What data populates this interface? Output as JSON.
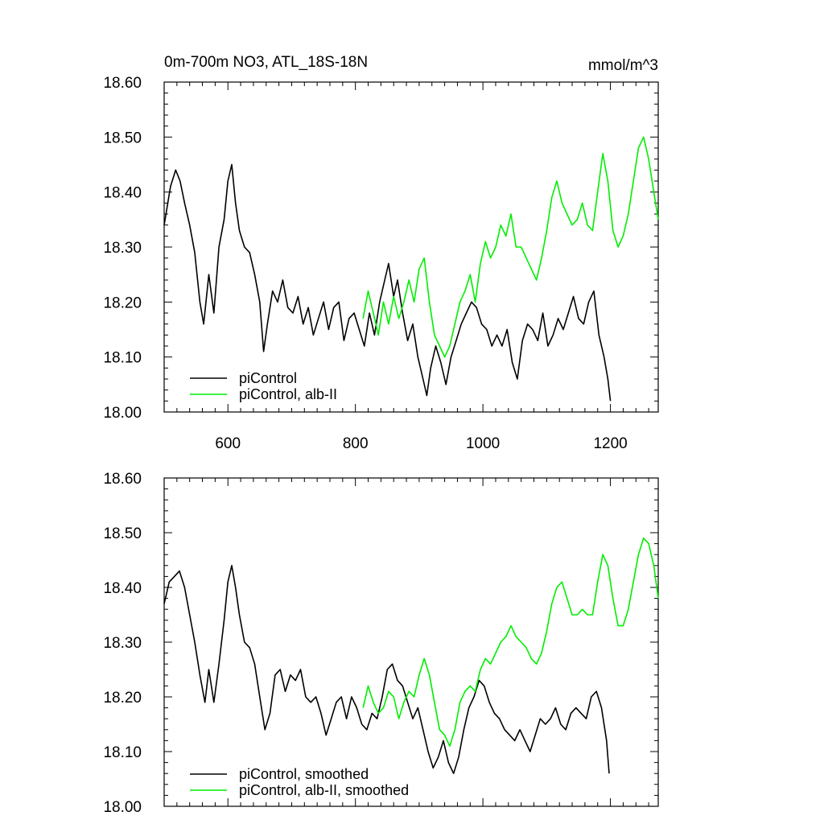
{
  "figure": {
    "title_left": "0m-700m NO3, ATL_18S-18N",
    "title_right": "mmol/m^3"
  },
  "chart_data": [
    {
      "type": "line",
      "panel": "top",
      "xlim": [
        500,
        1275
      ],
      "ylim": [
        18.0,
        18.6
      ],
      "x_ticks": [
        600,
        800,
        1000,
        1200
      ],
      "x_tick_labels": [
        "600",
        "800",
        "1000",
        "1200"
      ],
      "y_ticks": [
        18.0,
        18.1,
        18.2,
        18.3,
        18.4,
        18.5,
        18.6
      ],
      "y_tick_labels": [
        "18.00",
        "18.10",
        "18.20",
        "18.30",
        "18.40",
        "18.50",
        "18.60"
      ],
      "legend_position": "bottom-left",
      "series": [
        {
          "name": "piControl",
          "color": "#000000",
          "x": [
            500,
            510,
            518,
            525,
            532,
            540,
            548,
            556,
            562,
            570,
            578,
            586,
            594,
            600,
            606,
            612,
            618,
            626,
            634,
            642,
            650,
            656,
            662,
            670,
            678,
            686,
            694,
            702,
            710,
            718,
            726,
            734,
            742,
            750,
            758,
            766,
            774,
            782,
            790,
            798,
            806,
            814,
            822,
            830,
            838,
            846,
            852,
            860,
            866,
            874,
            882,
            890,
            898,
            906,
            912,
            918,
            926,
            934,
            942,
            950,
            958,
            966,
            974,
            982,
            990,
            998,
            1006,
            1014,
            1022,
            1030,
            1038,
            1046,
            1054,
            1062,
            1070,
            1078,
            1086,
            1094,
            1102,
            1110,
            1118,
            1126,
            1134,
            1142,
            1150,
            1158,
            1166,
            1174,
            1182,
            1190,
            1196,
            1200
          ],
          "values": [
            18.34,
            18.41,
            18.44,
            18.42,
            18.38,
            18.34,
            18.29,
            18.2,
            18.16,
            18.25,
            18.18,
            18.3,
            18.35,
            18.42,
            18.45,
            18.38,
            18.33,
            18.3,
            18.29,
            18.25,
            18.2,
            18.11,
            18.16,
            18.22,
            18.2,
            18.24,
            18.19,
            18.18,
            18.21,
            18.16,
            18.19,
            18.14,
            18.17,
            18.2,
            18.15,
            18.19,
            18.2,
            18.13,
            18.17,
            18.18,
            18.15,
            18.12,
            18.18,
            18.14,
            18.2,
            18.24,
            18.27,
            18.21,
            18.24,
            18.18,
            18.13,
            18.16,
            18.1,
            18.06,
            18.03,
            18.08,
            18.12,
            18.09,
            18.05,
            18.1,
            18.13,
            18.16,
            18.18,
            18.2,
            18.19,
            18.16,
            18.15,
            18.12,
            18.14,
            18.12,
            18.15,
            18.09,
            18.06,
            18.13,
            18.16,
            18.15,
            18.13,
            18.18,
            18.12,
            18.14,
            18.17,
            18.15,
            18.18,
            18.21,
            18.17,
            18.16,
            18.2,
            18.22,
            18.14,
            18.1,
            18.06,
            18.02
          ]
        },
        {
          "name": "piControl, alb-II",
          "color": "#00ee00",
          "x": [
            812,
            820,
            828,
            836,
            844,
            852,
            860,
            868,
            876,
            884,
            892,
            900,
            908,
            916,
            924,
            932,
            940,
            948,
            956,
            964,
            972,
            980,
            988,
            996,
            1004,
            1012,
            1020,
            1028,
            1036,
            1044,
            1052,
            1060,
            1068,
            1076,
            1084,
            1092,
            1100,
            1108,
            1116,
            1124,
            1132,
            1140,
            1148,
            1156,
            1164,
            1172,
            1180,
            1188,
            1196,
            1204,
            1212,
            1220,
            1228,
            1236,
            1244,
            1252,
            1260,
            1268,
            1275
          ],
          "values": [
            18.17,
            18.22,
            18.18,
            18.14,
            18.2,
            18.16,
            18.21,
            18.17,
            18.2,
            18.24,
            18.2,
            18.26,
            18.28,
            18.2,
            18.14,
            18.12,
            18.1,
            18.12,
            18.16,
            18.2,
            18.22,
            18.25,
            18.2,
            18.27,
            18.31,
            18.28,
            18.3,
            18.34,
            18.32,
            18.36,
            18.3,
            18.3,
            18.28,
            18.26,
            18.24,
            18.28,
            18.33,
            18.39,
            18.42,
            18.38,
            18.36,
            18.34,
            18.35,
            18.38,
            18.34,
            18.33,
            18.4,
            18.47,
            18.42,
            18.33,
            18.3,
            18.32,
            18.36,
            18.42,
            18.48,
            18.5,
            18.46,
            18.4,
            18.35
          ]
        }
      ]
    },
    {
      "type": "line",
      "panel": "bottom",
      "xlim": [
        500,
        1275
      ],
      "ylim": [
        18.0,
        18.6
      ],
      "x_ticks": [
        600,
        800,
        1000,
        1200
      ],
      "y_ticks": [
        18.0,
        18.1,
        18.2,
        18.3,
        18.4,
        18.5,
        18.6
      ],
      "y_tick_labels": [
        "18.00",
        "18.10",
        "18.20",
        "18.30",
        "18.40",
        "18.50",
        "18.60"
      ],
      "legend_position": "bottom-left",
      "series": [
        {
          "name": "piControl, smoothed",
          "color": "#000000",
          "x": [
            500,
            508,
            516,
            524,
            532,
            540,
            548,
            556,
            564,
            570,
            578,
            586,
            594,
            600,
            606,
            612,
            618,
            626,
            634,
            642,
            650,
            658,
            666,
            674,
            682,
            690,
            698,
            706,
            714,
            722,
            730,
            738,
            746,
            754,
            762,
            770,
            778,
            786,
            794,
            802,
            810,
            818,
            826,
            834,
            842,
            850,
            858,
            866,
            874,
            882,
            890,
            898,
            906,
            914,
            922,
            930,
            938,
            946,
            954,
            962,
            970,
            978,
            986,
            994,
            1002,
            1010,
            1018,
            1026,
            1034,
            1042,
            1050,
            1058,
            1066,
            1074,
            1082,
            1090,
            1098,
            1106,
            1114,
            1122,
            1130,
            1138,
            1146,
            1154,
            1162,
            1170,
            1178,
            1186,
            1194,
            1198
          ],
          "values": [
            18.37,
            18.41,
            18.42,
            18.43,
            18.4,
            18.35,
            18.3,
            18.24,
            18.19,
            18.25,
            18.19,
            18.26,
            18.34,
            18.41,
            18.44,
            18.4,
            18.35,
            18.3,
            18.29,
            18.26,
            18.2,
            18.14,
            18.17,
            18.24,
            18.25,
            18.21,
            18.24,
            18.23,
            18.25,
            18.2,
            18.19,
            18.2,
            18.17,
            18.13,
            18.16,
            18.19,
            18.2,
            18.16,
            18.2,
            18.18,
            18.15,
            18.14,
            18.17,
            18.16,
            18.2,
            18.25,
            18.26,
            18.23,
            18.22,
            18.19,
            18.16,
            18.18,
            18.14,
            18.1,
            18.07,
            18.09,
            18.12,
            18.08,
            18.06,
            18.09,
            18.14,
            18.18,
            18.2,
            18.23,
            18.22,
            18.19,
            18.17,
            18.16,
            18.14,
            18.13,
            18.12,
            18.14,
            18.12,
            18.1,
            18.13,
            18.16,
            18.15,
            18.16,
            18.18,
            18.15,
            18.14,
            18.17,
            18.18,
            18.17,
            18.16,
            18.2,
            18.21,
            18.18,
            18.12,
            18.06
          ]
        },
        {
          "name": "piControl, alb-II, smoothed",
          "color": "#00ee00",
          "x": [
            812,
            820,
            828,
            836,
            844,
            852,
            860,
            868,
            876,
            884,
            892,
            900,
            908,
            916,
            924,
            932,
            940,
            948,
            956,
            964,
            972,
            980,
            988,
            996,
            1004,
            1012,
            1020,
            1028,
            1036,
            1044,
            1052,
            1060,
            1068,
            1076,
            1084,
            1092,
            1100,
            1108,
            1116,
            1124,
            1132,
            1140,
            1148,
            1156,
            1164,
            1172,
            1180,
            1188,
            1196,
            1204,
            1212,
            1220,
            1228,
            1236,
            1244,
            1252,
            1260,
            1268,
            1275
          ],
          "values": [
            18.18,
            18.22,
            18.19,
            18.17,
            18.18,
            18.21,
            18.2,
            18.16,
            18.19,
            18.21,
            18.2,
            18.24,
            18.27,
            18.24,
            18.19,
            18.14,
            18.13,
            18.11,
            18.14,
            18.19,
            18.21,
            18.22,
            18.21,
            18.25,
            18.27,
            18.26,
            18.28,
            18.3,
            18.31,
            18.33,
            18.31,
            18.3,
            18.29,
            18.27,
            18.26,
            18.28,
            18.32,
            18.37,
            18.4,
            18.41,
            18.38,
            18.35,
            18.35,
            18.36,
            18.35,
            18.35,
            18.41,
            18.46,
            18.44,
            18.38,
            18.33,
            18.33,
            18.36,
            18.41,
            18.46,
            18.49,
            18.48,
            18.44,
            18.38
          ]
        }
      ]
    }
  ]
}
